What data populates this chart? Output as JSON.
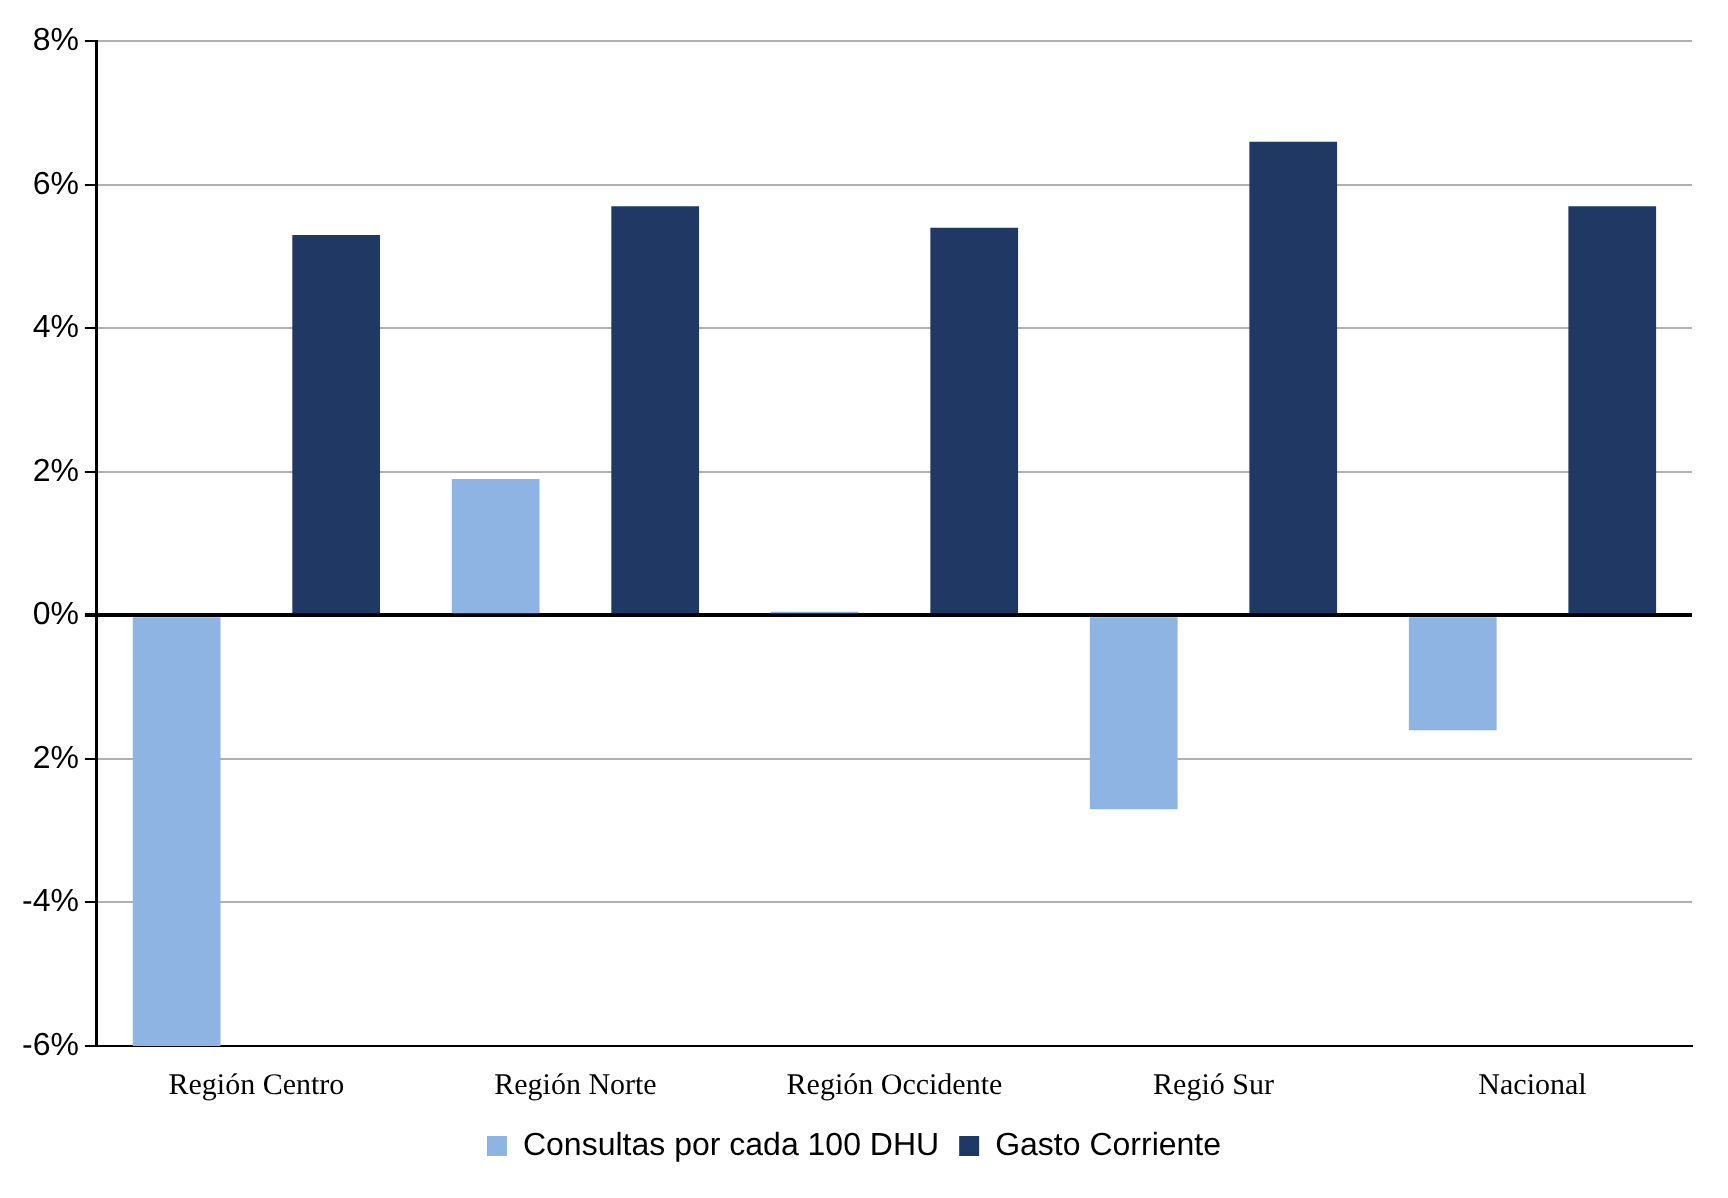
{
  "chart_data": {
    "type": "bar",
    "categories": [
      "Región Centro",
      "Región Norte",
      "Región Occidente",
      "Regió Sur",
      "Nacional"
    ],
    "series": [
      {
        "name": "Consultas por cada 100 DHU",
        "color": "#8db4e2",
        "values": [
          -6.0,
          1.9,
          0.05,
          -2.7,
          -1.6
        ]
      },
      {
        "name": "Gasto Corriente",
        "color": "#1f3864",
        "values": [
          5.3,
          5.7,
          5.4,
          6.6,
          5.7
        ]
      }
    ],
    "ylim": [
      -6,
      8
    ],
    "yticks": [
      {
        "value": -6,
        "label": "-6%"
      },
      {
        "value": -4,
        "label": "-4%"
      },
      {
        "value": -2,
        "label": "2%"
      },
      {
        "value": 0,
        "label": "0%"
      },
      {
        "value": 2,
        "label": "2%"
      },
      {
        "value": 4,
        "label": "4%"
      },
      {
        "value": 6,
        "label": "6%"
      },
      {
        "value": 8,
        "label": "8%"
      }
    ],
    "grid": "y",
    "legend": "bottom"
  }
}
